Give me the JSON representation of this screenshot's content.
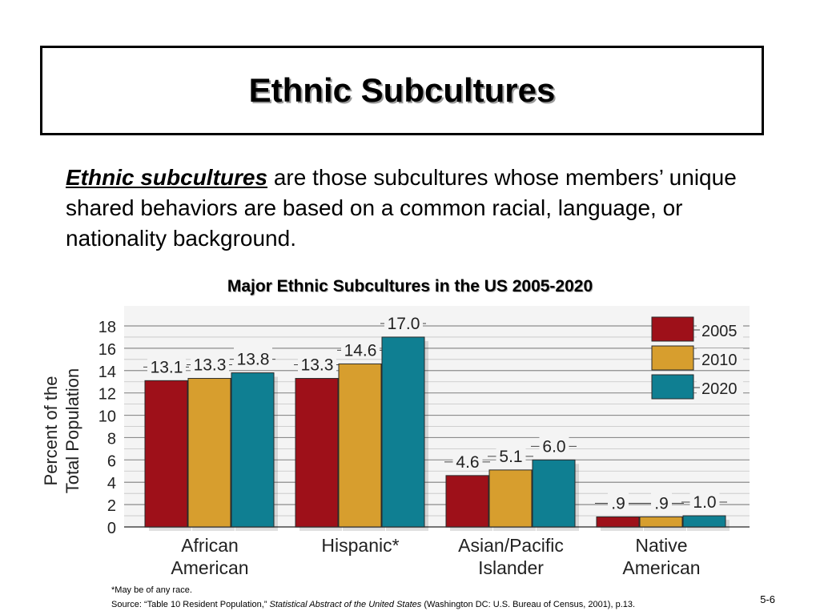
{
  "slide": {
    "title": "Ethnic Subcultures",
    "intro_term": "Ethnic subcultures",
    "intro_text": " are those subcultures whose members’ unique shared behaviors are based on a common racial, language, or nationality background.",
    "footnote": "*May be of any race.",
    "source_prefix": "Source:  “Table 10 Resident Population,” ",
    "source_title": "Statistical Abstract of the United States",
    "source_suffix": " (Washington DC: U.S. Bureau of Census, 2001), p.13.",
    "page_number": "5-6"
  },
  "chart_data": {
    "type": "bar",
    "title": "Major Ethnic Subcultures in the US 2005-2020",
    "ylabel": "Percent of the Total Population",
    "xlabel": "",
    "ylim": [
      0,
      18
    ],
    "yticks": [
      "0",
      "2",
      "4",
      "6",
      "8",
      "10",
      "12",
      "14",
      "16",
      "18"
    ],
    "grid": true,
    "legend_position": "top-right",
    "categories": [
      [
        "African",
        "American"
      ],
      [
        "Hispanic*"
      ],
      [
        "Asian/Pacific",
        "Islander"
      ],
      [
        "Native",
        "American"
      ]
    ],
    "series": [
      {
        "name": "2005",
        "color": "#9e1019",
        "values": [
          13.1,
          13.3,
          4.6,
          0.9
        ],
        "labels": [
          "13.1",
          "13.3",
          "4.6",
          ".9"
        ]
      },
      {
        "name": "2010",
        "color": "#d79e2e",
        "values": [
          13.3,
          14.6,
          5.1,
          0.9
        ],
        "labels": [
          "13.3",
          "14.6",
          "5.1",
          ".9"
        ]
      },
      {
        "name": "2020",
        "color": "#0f7f92",
        "values": [
          13.8,
          17.0,
          6.0,
          1.0
        ],
        "labels": [
          "13.8",
          "17.0",
          "6.0",
          "1.0"
        ]
      }
    ]
  }
}
